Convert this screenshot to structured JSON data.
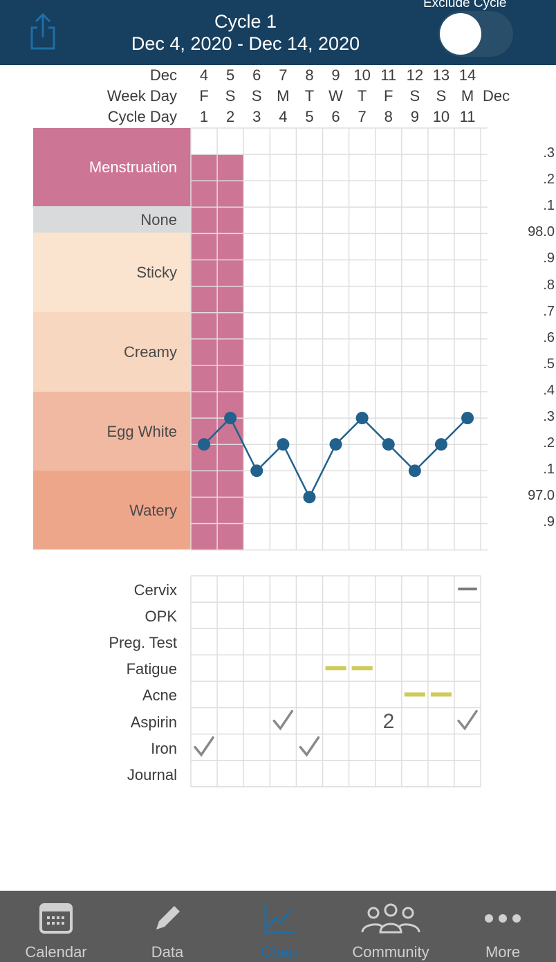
{
  "header": {
    "title": "Cycle 1",
    "date_range": "Dec 4, 2020 - Dec 14, 2020",
    "exclude_label": "Exclude Cycle",
    "exclude_on": false,
    "share_icon": "share-icon"
  },
  "chart_header": {
    "month_label": "Dec",
    "weekday_label": "Week Day",
    "cycle_day_label": "Cycle Day",
    "right_month_label": "Dec",
    "days": [
      {
        "date": "4",
        "weekday": "F",
        "cycle_day": "1"
      },
      {
        "date": "5",
        "weekday": "S",
        "cycle_day": "2"
      },
      {
        "date": "6",
        "weekday": "S",
        "cycle_day": "3"
      },
      {
        "date": "7",
        "weekday": "M",
        "cycle_day": "4"
      },
      {
        "date": "8",
        "weekday": "T",
        "cycle_day": "5"
      },
      {
        "date": "9",
        "weekday": "W",
        "cycle_day": "6"
      },
      {
        "date": "10",
        "weekday": "T",
        "cycle_day": "7"
      },
      {
        "date": "11",
        "weekday": "F",
        "cycle_day": "8"
      },
      {
        "date": "12",
        "weekday": "S",
        "cycle_day": "9"
      },
      {
        "date": "13",
        "weekday": "S",
        "cycle_day": "10"
      },
      {
        "date": "14",
        "weekday": "M",
        "cycle_day": "11"
      }
    ]
  },
  "bands": {
    "menstruation": "Menstruation",
    "none": "None",
    "sticky": "Sticky",
    "creamy": "Creamy",
    "egg_white": "Egg White",
    "watery": "Watery"
  },
  "menstruation_days": [
    1,
    2
  ],
  "temp_axis_labels": [
    ".3",
    ".2",
    ".1",
    "98.0",
    ".9",
    ".8",
    ".7",
    ".6",
    ".5",
    ".4",
    ".3",
    ".2",
    ".1",
    "97.0",
    ".9"
  ],
  "chart_data": {
    "type": "line",
    "x": [
      1,
      2,
      3,
      4,
      5,
      6,
      7,
      8,
      9,
      10,
      11
    ],
    "series": [
      {
        "values": [
          97.2,
          97.3,
          97.1,
          97.2,
          97.0,
          97.2,
          97.3,
          97.2,
          97.1,
          97.2,
          97.3
        ]
      }
    ],
    "ylim": [
      96.9,
      98.3
    ],
    "grid": true,
    "color": "#21618c"
  },
  "symptoms": {
    "rows": [
      "Cervix",
      "OPK",
      "Preg. Test",
      "Fatigue",
      "Acne",
      "Aspirin",
      "Iron",
      "Journal"
    ],
    "aspirin_count": "2"
  },
  "colors": {
    "header": "#173f5f",
    "menstruation": "#cd7594",
    "none": "#d9dadc",
    "sticky": "#fae3cf",
    "creamy": "#f7d7bf",
    "egg_white": "#f1b9a1",
    "watery": "#eea68b",
    "line": "#21618c",
    "symptom_bar": "#cfcb5a",
    "tab_bar": "#5b5b5b",
    "active_tab": "#1d6fa8"
  },
  "tabbar": {
    "items": [
      {
        "label": "Calendar",
        "icon": "calendar-icon"
      },
      {
        "label": "Data",
        "icon": "pencil-icon"
      },
      {
        "label": "Chart",
        "icon": "chart-icon",
        "active": true
      },
      {
        "label": "Community",
        "icon": "community-icon"
      },
      {
        "label": "More",
        "icon": "more-icon"
      }
    ]
  }
}
